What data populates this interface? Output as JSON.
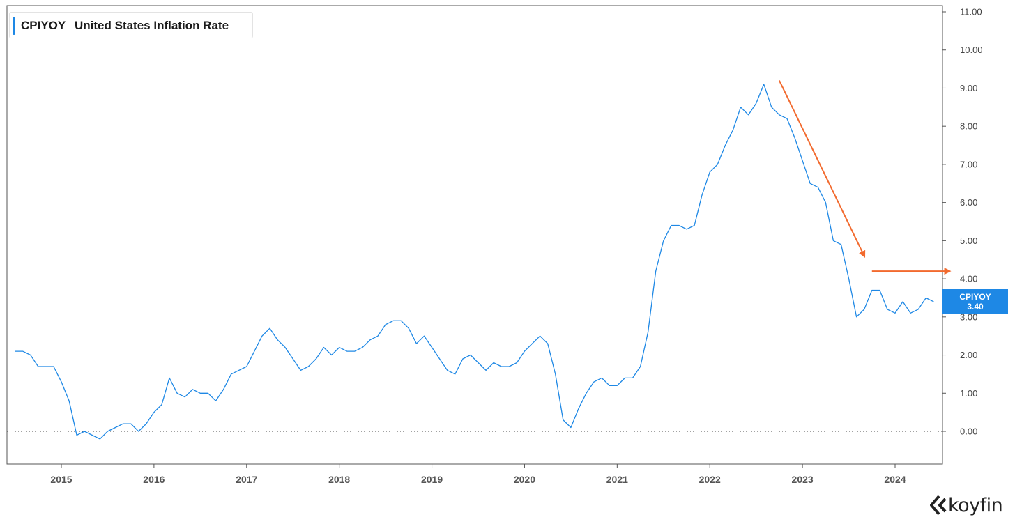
{
  "legend": {
    "ticker": "CPIYOY",
    "name": "United States Inflation Rate",
    "color": "#1e88e5"
  },
  "badge": {
    "ticker": "CPIYOY",
    "value": "3.40"
  },
  "logo": {
    "text": "koyfin"
  },
  "chart_data": {
    "type": "line",
    "title": "CPIYOY United States Inflation Rate",
    "xlabel": "",
    "ylabel": "",
    "ylim": [
      -0.9,
      11.0
    ],
    "y_axis_side": "right",
    "y_ticks": [
      "0.00",
      "1.00",
      "2.00",
      "3.00",
      "4.00",
      "5.00",
      "6.00",
      "7.00",
      "8.00",
      "9.00",
      "10.00",
      "11.00"
    ],
    "x_ticks": [
      "2015",
      "2016",
      "2017",
      "2018",
      "2019",
      "2020",
      "2021",
      "2022",
      "2023",
      "2024"
    ],
    "x_range": [
      "2014-07",
      "2024-06"
    ],
    "zero_line": "dotted",
    "series": [
      {
        "name": "CPIYOY",
        "color": "#1e88e5",
        "start": "2014-07",
        "frequency": "monthly",
        "values": [
          2.1,
          2.1,
          2.0,
          1.7,
          1.7,
          1.7,
          1.3,
          0.8,
          -0.1,
          0.0,
          -0.1,
          -0.2,
          0.0,
          0.1,
          0.2,
          0.2,
          0.0,
          0.2,
          0.5,
          0.7,
          1.4,
          1.0,
          0.9,
          1.1,
          1.0,
          1.0,
          0.8,
          1.1,
          1.5,
          1.6,
          1.7,
          2.1,
          2.5,
          2.7,
          2.4,
          2.2,
          1.9,
          1.6,
          1.7,
          1.9,
          2.2,
          2.0,
          2.2,
          2.1,
          2.1,
          2.2,
          2.4,
          2.5,
          2.8,
          2.9,
          2.9,
          2.7,
          2.3,
          2.5,
          2.2,
          1.9,
          1.6,
          1.5,
          1.9,
          2.0,
          1.8,
          1.6,
          1.8,
          1.7,
          1.7,
          1.8,
          2.1,
          2.3,
          2.5,
          2.3,
          1.5,
          0.3,
          0.1,
          0.6,
          1.0,
          1.3,
          1.4,
          1.2,
          1.2,
          1.4,
          1.4,
          1.7,
          2.6,
          4.2,
          5.0,
          5.4,
          5.4,
          5.3,
          5.4,
          6.2,
          6.8,
          7.0,
          7.5,
          7.9,
          8.5,
          8.3,
          8.6,
          9.1,
          8.5,
          8.3,
          8.2,
          7.7,
          7.1,
          6.5,
          6.4,
          6.0,
          5.0,
          4.9,
          4.0,
          3.0,
          3.2,
          3.7,
          3.7,
          3.2,
          3.1,
          3.4,
          3.1,
          3.2,
          3.5,
          3.4
        ]
      }
    ],
    "annotations": [
      {
        "type": "arrow",
        "color": "#f26a2e",
        "from": [
          "2022-10",
          9.2
        ],
        "to": [
          "2023-09",
          4.6
        ]
      },
      {
        "type": "arrow",
        "color": "#f26a2e",
        "from": [
          "2023-10",
          4.2
        ],
        "to": [
          "2024-08",
          4.2
        ]
      }
    ],
    "last_value_label": "3.40"
  }
}
